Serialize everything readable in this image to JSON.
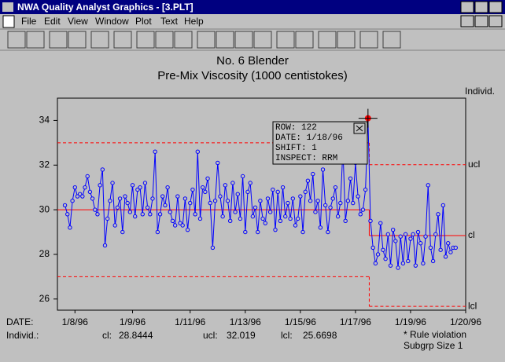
{
  "window": {
    "title": "NWA Quality Analyst Graphics - [3.PLT]",
    "menu": [
      "File",
      "Edit",
      "View",
      "Window",
      "Plot",
      "Text",
      "Help"
    ]
  },
  "chart_data": {
    "type": "line",
    "title": "No. 6 Blender",
    "subtitle": "Pre-Mix Viscosity (1000 centistokes)",
    "y_label": "Individ.",
    "x_label": "DATE:",
    "values": [
      30.2,
      29.8,
      29.2,
      30.4,
      31.0,
      30.6,
      30.7,
      30.6,
      31.0,
      31.5,
      30.8,
      30.5,
      30.0,
      29.8,
      31.1,
      31.8,
      28.4,
      29.6,
      30.4,
      31.2,
      29.3,
      30.1,
      30.5,
      29.0,
      30.6,
      30.3,
      29.9,
      31.1,
      29.7,
      30.9,
      31.0,
      29.8,
      31.2,
      30.1,
      29.8,
      30.5,
      32.6,
      29.0,
      29.8,
      30.6,
      30.2,
      31.0,
      29.9,
      29.5,
      29.3,
      30.6,
      29.4,
      29.3,
      30.5,
      29.1,
      30.3,
      30.9,
      29.8,
      32.6,
      29.6,
      31.0,
      30.8,
      31.4,
      30.3,
      28.3,
      30.4,
      32.1,
      30.6,
      29.7,
      31.1,
      30.4,
      29.5,
      31.2,
      29.9,
      30.7,
      29.6,
      31.5,
      29.0,
      30.8,
      31.2,
      29.7,
      30.1,
      29.0,
      30.4,
      29.6,
      29.4,
      30.5,
      29.9,
      30.9,
      29.1,
      30.8,
      29.5,
      31.0,
      29.7,
      30.3,
      29.6,
      30.5,
      29.3,
      29.6,
      30.6,
      29.0,
      30.8,
      31.3,
      30.4,
      31.6,
      29.9,
      30.4,
      29.2,
      31.8,
      30.2,
      29.0,
      30.1,
      30.5,
      31.0,
      29.7,
      30.3,
      32.7,
      29.5,
      30.4,
      31.4,
      30.3,
      32.1,
      30.6,
      29.8,
      30.0,
      30.9,
      34.1,
      29.5,
      28.3,
      27.6,
      28.0,
      29.4,
      28.2,
      27.8,
      28.9,
      27.5,
      29.1,
      28.6,
      27.4,
      28.8,
      27.6,
      28.9,
      27.7,
      28.7,
      28.9,
      27.5,
      29.0,
      28.5,
      27.6,
      28.8,
      31.1,
      28.3,
      27.7,
      28.9,
      29.8,
      28.2,
      30.2,
      27.9,
      28.5,
      28.1,
      28.3,
      28.3
    ],
    "color": "#0000ff",
    "limit_color": "#ff0000",
    "violations": [
      121
    ],
    "xlim": [
      -3,
      160
    ],
    "ylim": [
      25.5,
      35
    ],
    "xticks": [
      {
        "value": 4,
        "label": "1/8/96"
      },
      {
        "value": 27,
        "label": "1/9/96"
      },
      {
        "value": 50,
        "label": "1/11/96"
      },
      {
        "value": 72,
        "label": "1/13/96"
      },
      {
        "value": 94,
        "label": "1/15/96"
      },
      {
        "value": 116,
        "label": "1/17/96"
      },
      {
        "value": 138,
        "label": "1/19/96"
      },
      {
        "value": 160,
        "label": "1/20/96"
      }
    ],
    "yticks": [
      26,
      28,
      30,
      32,
      34
    ],
    "limits": [
      {
        "start": 0,
        "end": 121,
        "ucl": 33,
        "cl": 30,
        "lcl": 27
      },
      {
        "start": 122,
        "end": 156,
        "ucl": 32.019,
        "cl": 28.8444,
        "lcl": 25.6698
      }
    ],
    "limit_labels": {
      "ucl": "ucl",
      "cl": "cl",
      "lcl": "lcl"
    },
    "footer": {
      "label": "Individ.:",
      "cl": "cl:",
      "ucl": "ucl:",
      "lcl": "lcl:",
      "note": "* Rule violation",
      "size": "Subgrp Size 1"
    },
    "tooltip": [
      "ROW: 122",
      "DATE: 1/18/96",
      "SHIFT: 1",
      "INSPECT: RRM"
    ]
  }
}
